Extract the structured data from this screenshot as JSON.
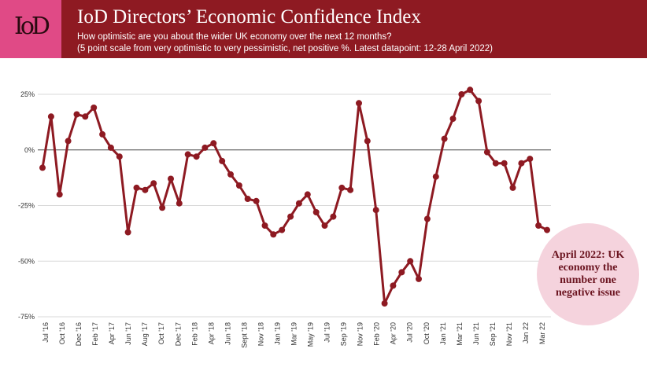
{
  "header": {
    "logo": "IoD",
    "title": "IoD Directors’ Economic Confidence Index",
    "subtitle_line1": "How optimistic are you about the wider UK economy over the next 12 months?",
    "subtitle_line2": " (5 point scale from very optimistic to very pessimistic, net positive %. Latest datapoint: 12-28 April 2022)"
  },
  "callout": {
    "text": "April 2022: UK economy the number one negative issue"
  },
  "colors": {
    "header": "#8e1a22",
    "logo_bg": "#e04a86",
    "line": "#8e1a22",
    "callout_bg": "#f5d3dd"
  },
  "chart_data": {
    "type": "line",
    "title": "IoD Directors’ Economic Confidence Index",
    "x_tick_labels": [
      "Jul '16",
      "Oct '16",
      "Dec '16",
      "Feb '17",
      "Apr '17",
      "Jun '17",
      "Aug '17",
      "Oct '17",
      "Dec '17",
      "Feb '18",
      "Apr '18",
      "Jun '18",
      "Sept '18",
      "Nov '18",
      "Jan '19",
      "Mar '19",
      "May '19",
      "Jul '19",
      "Sep '19",
      "Nov '19",
      "Feb '20",
      "Apr '20",
      "Jul '20",
      "Oct '20",
      "Jan '21",
      "Mar '21",
      "Jun '21",
      "Sep '21",
      "Nov '21",
      "Jan 22",
      "Mar 22"
    ],
    "y_ticks": [
      25,
      0,
      -25,
      -50,
      -75
    ],
    "y_tick_labels": [
      "25%",
      "0%",
      "-25%",
      "-50%",
      "-75%"
    ],
    "ylim": [
      -75,
      25
    ],
    "series": [
      {
        "values": [
          -8,
          15,
          -20,
          4,
          16,
          15,
          19,
          7,
          1,
          -3,
          -37,
          -17,
          -18,
          -15,
          -26,
          -13,
          -24,
          -2,
          -3,
          1,
          3,
          -5,
          -11,
          -16,
          -22,
          -23,
          -34,
          -38,
          -36,
          -30,
          -24,
          -20,
          -28,
          -34,
          -30,
          -17,
          -18,
          21,
          4,
          -27,
          -69,
          -61,
          -55,
          -50,
          -58,
          -31,
          -12,
          5,
          14,
          25,
          27,
          22,
          -1,
          -6,
          -6,
          -17,
          -6,
          -4,
          -34,
          -36
        ]
      }
    ]
  }
}
